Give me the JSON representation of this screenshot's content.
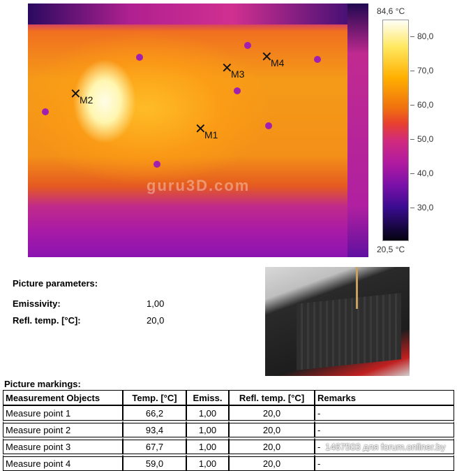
{
  "thermal_image": {
    "watermark": "guru3D.com",
    "markers": [
      {
        "label": "M1"
      },
      {
        "label": "M2"
      },
      {
        "label": "M3"
      },
      {
        "label": "M4"
      }
    ]
  },
  "color_scale": {
    "max": "84,6 °C",
    "min": "20,5 °C",
    "ticks": [
      "80,0",
      "70,0",
      "60,0",
      "50,0",
      "40,0",
      "30,0"
    ],
    "palette": "iron"
  },
  "picture_parameters": {
    "title": "Picture parameters:",
    "emissivity_label": "Emissivity:",
    "emissivity_value": "1,00",
    "refl_label": "Refl. temp. [°C]:",
    "refl_value": "20,0"
  },
  "markings": {
    "title": "Picture markings:",
    "headers": [
      "Measurement Objects",
      "Temp. [°C]",
      "Emiss.",
      "Refl. temp. [°C]",
      "Remarks"
    ],
    "rows": [
      [
        "Measure point 1",
        "66,2",
        "1,00",
        "20,0",
        "-"
      ],
      [
        "Measure point 2",
        "93,4",
        "1,00",
        "20,0",
        "-"
      ],
      [
        "Measure point 3",
        "67,7",
        "1,00",
        "20,0",
        "-"
      ],
      [
        "Measure point 4",
        "59,0",
        "1,00",
        "20,0",
        "-"
      ]
    ]
  },
  "forum_watermark": "1467503 для forum.onliner.by"
}
